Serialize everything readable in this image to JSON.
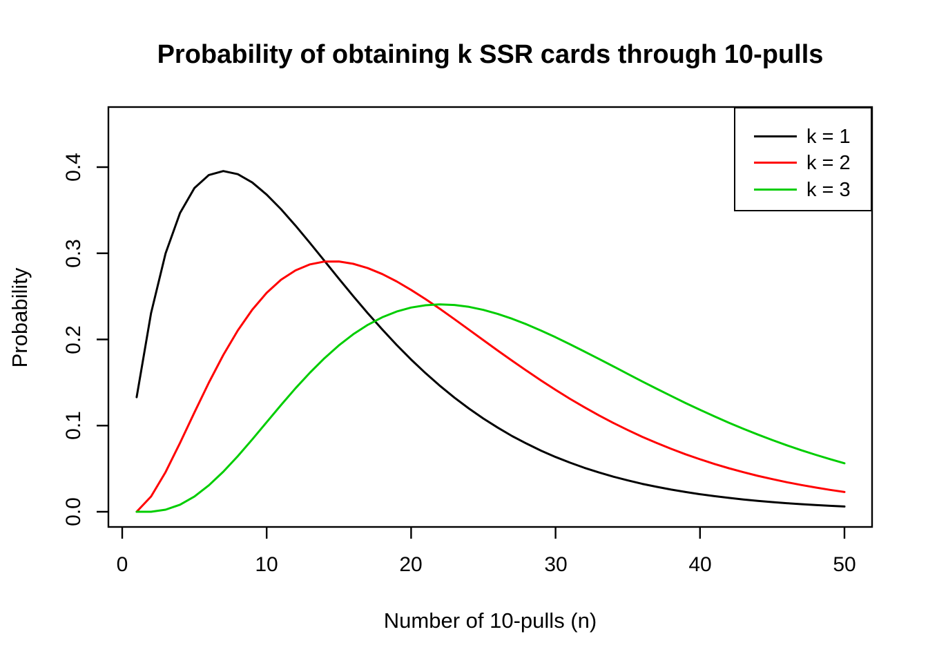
{
  "title": "Probability of obtaining k SSR cards through 10-pulls",
  "legend": {
    "items": [
      {
        "label": "k = 1",
        "color": "#000000"
      },
      {
        "label": "k = 2",
        "color": "#FF0000"
      },
      {
        "label": "k = 3",
        "color": "#00CD00"
      }
    ]
  },
  "chart_data": {
    "type": "line",
    "title": "Probability of obtaining k SSR cards through 10-pulls",
    "xlabel": "Number of 10-pulls (n)",
    "ylabel": "Probability",
    "x_ticks": [
      0,
      10,
      20,
      30,
      40,
      50
    ],
    "x_tick_labels": [
      "0",
      "10",
      "20",
      "30",
      "40",
      "50"
    ],
    "y_ticks": [
      0.0,
      0.1,
      0.2,
      0.3,
      0.4
    ],
    "y_tick_labels": [
      "0.0",
      "0.1",
      "0.2",
      "0.3",
      "0.4"
    ],
    "xlim": [
      0,
      52
    ],
    "ylim": [
      0,
      0.468
    ],
    "grid": false,
    "legend_position": "topright",
    "x": [
      1,
      2,
      3,
      4,
      5,
      6,
      7,
      8,
      9,
      10,
      11,
      12,
      13,
      14,
      15,
      16,
      17,
      18,
      19,
      20,
      21,
      22,
      23,
      24,
      25,
      26,
      27,
      28,
      29,
      30,
      31,
      32,
      33,
      34,
      35,
      36,
      37,
      38,
      39,
      40,
      41,
      42,
      43,
      44,
      45,
      46,
      47,
      48,
      49,
      50
    ],
    "series": [
      {
        "name": "k = 1",
        "color": "#000000",
        "values": [
          0.133,
          0.2306,
          0.2999,
          0.3467,
          0.3757,
          0.3909,
          0.3954,
          0.3918,
          0.3822,
          0.3681,
          0.3511,
          0.3321,
          0.3119,
          0.2912,
          0.2705,
          0.2502,
          0.2305,
          0.2116,
          0.1936,
          0.1767,
          0.1609,
          0.1461,
          0.1324,
          0.1198,
          0.1082,
          0.0976,
          0.0878,
          0.079,
          0.0709,
          0.0636,
          0.057,
          0.051,
          0.0456,
          0.0407,
          0.0364,
          0.0324,
          0.0289,
          0.0257,
          0.0229,
          0.0204,
          0.0181,
          0.0161,
          0.0143,
          0.0127,
          0.0112,
          0.0099,
          0.0088,
          0.0078,
          0.0069,
          0.0061
        ]
      },
      {
        "name": "k = 2",
        "color": "#FF0000",
        "values": [
          0.0,
          0.0177,
          0.046,
          0.0798,
          0.1153,
          0.1499,
          0.182,
          0.2104,
          0.2345,
          0.2541,
          0.2693,
          0.2802,
          0.2871,
          0.2904,
          0.2905,
          0.2878,
          0.2828,
          0.2759,
          0.2673,
          0.2575,
          0.2468,
          0.2354,
          0.2235,
          0.2114,
          0.1992,
          0.1871,
          0.1752,
          0.1636,
          0.1523,
          0.1415,
          0.1311,
          0.1213,
          0.1119,
          0.1031,
          0.0948,
          0.087,
          0.0798,
          0.073,
          0.0667,
          0.0609,
          0.0555,
          0.0505,
          0.0459,
          0.0417,
          0.0379,
          0.0343,
          0.0311,
          0.0281,
          0.0254,
          0.0229
        ]
      },
      {
        "name": "k = 3",
        "color": "#00CD00",
        "values": [
          0.0,
          0.0,
          0.0024,
          0.0082,
          0.0177,
          0.0307,
          0.0465,
          0.0645,
          0.0839,
          0.104,
          0.1239,
          0.1433,
          0.1615,
          0.1782,
          0.1931,
          0.2061,
          0.2169,
          0.2257,
          0.2324,
          0.237,
          0.2397,
          0.2407,
          0.24,
          0.2378,
          0.2343,
          0.2296,
          0.224,
          0.2175,
          0.2103,
          0.2026,
          0.1944,
          0.186,
          0.1774,
          0.1687,
          0.16,
          0.1513,
          0.1428,
          0.1344,
          0.1262,
          0.1183,
          0.1107,
          0.1033,
          0.0963,
          0.0896,
          0.0833,
          0.0772,
          0.0715,
          0.0661,
          0.0611,
          0.0563
        ]
      }
    ]
  }
}
